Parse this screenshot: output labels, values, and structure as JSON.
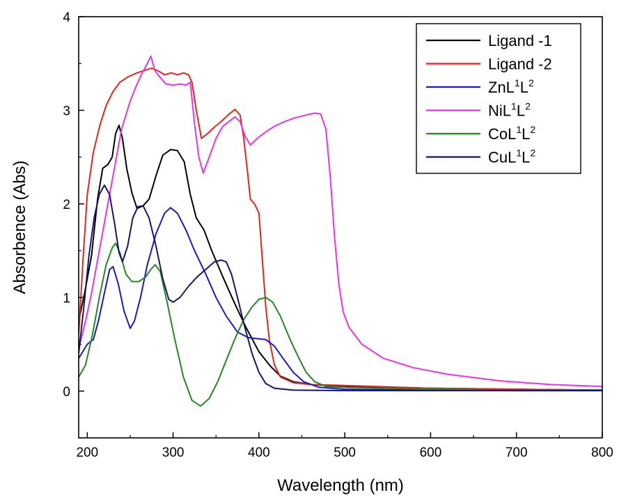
{
  "chart_data": {
    "type": "line",
    "title": "",
    "xlabel": "Wavelength (nm)",
    "ylabel": "Absorbence (Abs)",
    "xlim": [
      190,
      800
    ],
    "ylim": [
      -0.5,
      4
    ],
    "xticks": [
      200,
      300,
      400,
      500,
      600,
      700,
      800
    ],
    "yticks": [
      0,
      1,
      2,
      3,
      4
    ],
    "grid": false,
    "legend_position": "top-right",
    "series": [
      {
        "name": "Ligand -1",
        "label_parts": [
          {
            "t": "Ligand -1",
            "sup": false
          }
        ],
        "color": "#000000",
        "points": [
          [
            190,
            0.75
          ],
          [
            197,
            1.05
          ],
          [
            205,
            1.45
          ],
          [
            212,
            2.05
          ],
          [
            218,
            2.38
          ],
          [
            224,
            2.42
          ],
          [
            229,
            2.5
          ],
          [
            233,
            2.75
          ],
          [
            237,
            2.84
          ],
          [
            241,
            2.7
          ],
          [
            246,
            2.38
          ],
          [
            252,
            2.12
          ],
          [
            258,
            1.95
          ],
          [
            265,
            1.98
          ],
          [
            272,
            2.05
          ],
          [
            280,
            2.3
          ],
          [
            288,
            2.52
          ],
          [
            297,
            2.58
          ],
          [
            305,
            2.57
          ],
          [
            313,
            2.45
          ],
          [
            320,
            2.1
          ],
          [
            327,
            1.85
          ],
          [
            336,
            1.72
          ],
          [
            345,
            1.5
          ],
          [
            358,
            1.22
          ],
          [
            372,
            0.93
          ],
          [
            385,
            0.68
          ],
          [
            400,
            0.42
          ],
          [
            413,
            0.27
          ],
          [
            425,
            0.16
          ],
          [
            440,
            0.1
          ],
          [
            460,
            0.07
          ],
          [
            480,
            0.06
          ],
          [
            520,
            0.05
          ],
          [
            600,
            0.03
          ],
          [
            700,
            0.02
          ],
          [
            800,
            0.01
          ]
        ]
      },
      {
        "name": "Ligand -2",
        "label_parts": [
          {
            "t": "Ligand -2",
            "sup": false
          }
        ],
        "color": "#e8231b",
        "points": [
          [
            190,
            0.6
          ],
          [
            195,
            1.4
          ],
          [
            200,
            2.1
          ],
          [
            207,
            2.55
          ],
          [
            215,
            2.85
          ],
          [
            222,
            3.05
          ],
          [
            230,
            3.2
          ],
          [
            238,
            3.3
          ],
          [
            248,
            3.36
          ],
          [
            258,
            3.4
          ],
          [
            268,
            3.43
          ],
          [
            275,
            3.45
          ],
          [
            283,
            3.42
          ],
          [
            290,
            3.38
          ],
          [
            298,
            3.4
          ],
          [
            305,
            3.38
          ],
          [
            312,
            3.4
          ],
          [
            318,
            3.38
          ],
          [
            322,
            3.3
          ],
          [
            327,
            3.0
          ],
          [
            333,
            2.7
          ],
          [
            340,
            2.75
          ],
          [
            348,
            2.82
          ],
          [
            356,
            2.88
          ],
          [
            364,
            2.95
          ],
          [
            372,
            3.01
          ],
          [
            378,
            2.95
          ],
          [
            382,
            2.72
          ],
          [
            386,
            2.4
          ],
          [
            390,
            2.05
          ],
          [
            395,
            2.0
          ],
          [
            400,
            1.9
          ],
          [
            404,
            1.4
          ],
          [
            408,
            0.9
          ],
          [
            412,
            0.55
          ],
          [
            418,
            0.28
          ],
          [
            425,
            0.15
          ],
          [
            440,
            0.09
          ],
          [
            460,
            0.07
          ],
          [
            500,
            0.06
          ],
          [
            600,
            0.03
          ],
          [
            700,
            0.02
          ],
          [
            800,
            0.01
          ]
        ]
      },
      {
        "name": "ZnL1L2",
        "label_parts": [
          {
            "t": "ZnL",
            "sup": false
          },
          {
            "t": "1",
            "sup": true
          },
          {
            "t": "L",
            "sup": false
          },
          {
            "t": "2",
            "sup": true
          }
        ],
        "color": "#1818d0",
        "points": [
          [
            190,
            0.35
          ],
          [
            200,
            0.5
          ],
          [
            207,
            0.55
          ],
          [
            213,
            0.75
          ],
          [
            220,
            1.05
          ],
          [
            226,
            1.3
          ],
          [
            230,
            1.33
          ],
          [
            236,
            1.15
          ],
          [
            243,
            0.85
          ],
          [
            250,
            0.67
          ],
          [
            255,
            0.75
          ],
          [
            262,
            1.0
          ],
          [
            270,
            1.35
          ],
          [
            280,
            1.68
          ],
          [
            290,
            1.9
          ],
          [
            297,
            1.96
          ],
          [
            305,
            1.9
          ],
          [
            315,
            1.72
          ],
          [
            325,
            1.5
          ],
          [
            338,
            1.25
          ],
          [
            350,
            1.0
          ],
          [
            362,
            0.8
          ],
          [
            375,
            0.63
          ],
          [
            388,
            0.57
          ],
          [
            398,
            0.56
          ],
          [
            408,
            0.55
          ],
          [
            418,
            0.48
          ],
          [
            428,
            0.35
          ],
          [
            440,
            0.2
          ],
          [
            452,
            0.1
          ],
          [
            470,
            0.04
          ],
          [
            500,
            0.02
          ],
          [
            600,
            0.01
          ],
          [
            700,
            0.005
          ],
          [
            800,
            0.005
          ]
        ]
      },
      {
        "name": "NiL1L2",
        "label_parts": [
          {
            "t": "NiL",
            "sup": false
          },
          {
            "t": "1",
            "sup": true
          },
          {
            "t": "L",
            "sup": false
          },
          {
            "t": "2",
            "sup": true
          }
        ],
        "color": "#ee2fee",
        "points": [
          [
            190,
            0.45
          ],
          [
            198,
            0.75
          ],
          [
            205,
            1.05
          ],
          [
            212,
            1.4
          ],
          [
            220,
            1.8
          ],
          [
            230,
            2.3
          ],
          [
            240,
            2.8
          ],
          [
            250,
            3.1
          ],
          [
            258,
            3.28
          ],
          [
            264,
            3.4
          ],
          [
            270,
            3.5
          ],
          [
            274,
            3.58
          ],
          [
            279,
            3.42
          ],
          [
            285,
            3.35
          ],
          [
            292,
            3.28
          ],
          [
            300,
            3.27
          ],
          [
            308,
            3.28
          ],
          [
            315,
            3.27
          ],
          [
            320,
            3.3
          ],
          [
            325,
            2.85
          ],
          [
            330,
            2.5
          ],
          [
            335,
            2.33
          ],
          [
            342,
            2.5
          ],
          [
            350,
            2.7
          ],
          [
            358,
            2.83
          ],
          [
            365,
            2.88
          ],
          [
            372,
            2.93
          ],
          [
            378,
            2.88
          ],
          [
            384,
            2.72
          ],
          [
            390,
            2.63
          ],
          [
            398,
            2.7
          ],
          [
            408,
            2.77
          ],
          [
            418,
            2.83
          ],
          [
            430,
            2.88
          ],
          [
            442,
            2.92
          ],
          [
            455,
            2.95
          ],
          [
            465,
            2.97
          ],
          [
            472,
            2.96
          ],
          [
            478,
            2.8
          ],
          [
            483,
            2.3
          ],
          [
            488,
            1.65
          ],
          [
            493,
            1.15
          ],
          [
            498,
            0.85
          ],
          [
            505,
            0.68
          ],
          [
            520,
            0.5
          ],
          [
            545,
            0.35
          ],
          [
            580,
            0.25
          ],
          [
            620,
            0.18
          ],
          [
            680,
            0.11
          ],
          [
            740,
            0.07
          ],
          [
            800,
            0.05
          ]
        ]
      },
      {
        "name": "CoL1L2",
        "label_parts": [
          {
            "t": "CoL",
            "sup": false
          },
          {
            "t": "1",
            "sup": true
          },
          {
            "t": "L",
            "sup": false
          },
          {
            "t": "2",
            "sup": true
          }
        ],
        "color": "#1f8a1f",
        "points": [
          [
            190,
            0.15
          ],
          [
            198,
            0.28
          ],
          [
            206,
            0.6
          ],
          [
            214,
            1.0
          ],
          [
            222,
            1.35
          ],
          [
            229,
            1.53
          ],
          [
            233,
            1.58
          ],
          [
            238,
            1.48
          ],
          [
            245,
            1.25
          ],
          [
            252,
            1.17
          ],
          [
            260,
            1.17
          ],
          [
            268,
            1.22
          ],
          [
            274,
            1.3
          ],
          [
            279,
            1.35
          ],
          [
            285,
            1.28
          ],
          [
            293,
            0.95
          ],
          [
            302,
            0.55
          ],
          [
            312,
            0.15
          ],
          [
            322,
            -0.1
          ],
          [
            332,
            -0.16
          ],
          [
            342,
            -0.08
          ],
          [
            352,
            0.1
          ],
          [
            362,
            0.33
          ],
          [
            372,
            0.56
          ],
          [
            382,
            0.76
          ],
          [
            392,
            0.9
          ],
          [
            400,
            0.98
          ],
          [
            408,
            1.0
          ],
          [
            416,
            0.95
          ],
          [
            425,
            0.8
          ],
          [
            435,
            0.58
          ],
          [
            445,
            0.38
          ],
          [
            455,
            0.2
          ],
          [
            465,
            0.1
          ],
          [
            478,
            0.05
          ],
          [
            500,
            0.04
          ],
          [
            600,
            0.02
          ],
          [
            700,
            0.01
          ],
          [
            800,
            0.01
          ]
        ]
      },
      {
        "name": "CuL1L2",
        "label_parts": [
          {
            "t": "CuL",
            "sup": false
          },
          {
            "t": "1",
            "sup": true
          },
          {
            "t": "L",
            "sup": false
          },
          {
            "t": "2",
            "sup": true
          }
        ],
        "color": "#14146e",
        "points": [
          [
            190,
            0.4
          ],
          [
            196,
            0.9
          ],
          [
            202,
            1.45
          ],
          [
            208,
            1.85
          ],
          [
            214,
            2.1
          ],
          [
            220,
            2.2
          ],
          [
            226,
            2.1
          ],
          [
            232,
            1.78
          ],
          [
            237,
            1.48
          ],
          [
            241,
            1.38
          ],
          [
            247,
            1.55
          ],
          [
            253,
            1.85
          ],
          [
            259,
            1.97
          ],
          [
            265,
            1.98
          ],
          [
            272,
            1.85
          ],
          [
            280,
            1.55
          ],
          [
            288,
            1.2
          ],
          [
            295,
            0.98
          ],
          [
            300,
            0.95
          ],
          [
            308,
            1.0
          ],
          [
            318,
            1.12
          ],
          [
            328,
            1.22
          ],
          [
            338,
            1.3
          ],
          [
            348,
            1.38
          ],
          [
            356,
            1.4
          ],
          [
            362,
            1.38
          ],
          [
            368,
            1.25
          ],
          [
            375,
            1.0
          ],
          [
            383,
            0.7
          ],
          [
            392,
            0.4
          ],
          [
            400,
            0.2
          ],
          [
            408,
            0.08
          ],
          [
            418,
            0.03
          ],
          [
            440,
            0.01
          ],
          [
            500,
            0.005
          ],
          [
            600,
            0.005
          ],
          [
            700,
            0.005
          ],
          [
            800,
            0.005
          ]
        ]
      }
    ]
  }
}
